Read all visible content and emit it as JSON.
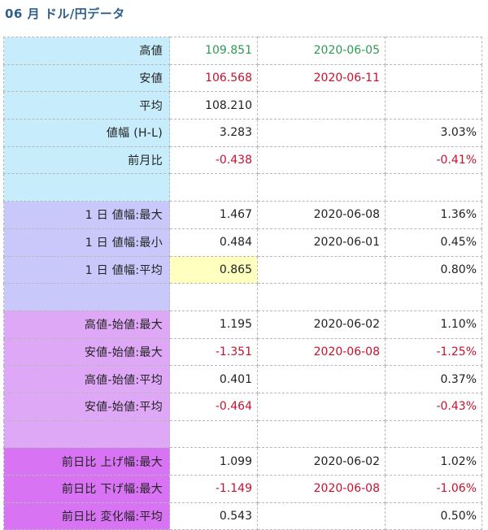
{
  "title": "06 月 ドル/円データ",
  "colors": {
    "label_blue": "#c7ecfb",
    "label_lavender": "#c8c8fb",
    "label_violet": "#dfa8f7",
    "label_magenta": "#d874f4",
    "positive": "#2e9a52",
    "negative": "#c8102e",
    "highlight": "#ffffc0"
  },
  "rows": [
    {
      "label": "高値",
      "value": "109.851",
      "date": "2020-06-05",
      "pct": "",
      "tone": "pos",
      "bg": "#c7ecfb"
    },
    {
      "label": "安値",
      "value": "106.568",
      "date": "2020-06-11",
      "pct": "",
      "tone": "neg",
      "bg": "#c7ecfb"
    },
    {
      "label": "平均",
      "value": "108.210",
      "date": "",
      "pct": "",
      "tone": "normal",
      "bg": "#c7ecfb"
    },
    {
      "label": "値幅 (H-L)",
      "value": "3.283",
      "date": "",
      "pct": "3.03%",
      "tone": "normal",
      "bg": "#c7ecfb"
    },
    {
      "label": "前月比",
      "value": "-0.438",
      "date": "",
      "pct": "-0.41%",
      "tone": "neg",
      "bg": "#c7ecfb"
    },
    {
      "label": "",
      "value": "",
      "date": "",
      "pct": "",
      "tone": "normal",
      "bg": "#c7ecfb"
    },
    {
      "label": "1 日 値幅:最大",
      "value": "1.467",
      "date": "2020-06-08",
      "pct": "1.36%",
      "tone": "normal",
      "bg": "#c8c8fb"
    },
    {
      "label": "1 日 値幅:最小",
      "value": "0.484",
      "date": "2020-06-01",
      "pct": "0.45%",
      "tone": "normal",
      "bg": "#c8c8fb"
    },
    {
      "label": "1 日 値幅:平均",
      "value": "0.865",
      "date": "",
      "pct": "0.80%",
      "tone": "normal",
      "bg": "#c8c8fb",
      "highlight": true
    },
    {
      "label": "",
      "value": "",
      "date": "",
      "pct": "",
      "tone": "normal",
      "bg": "#c8c8fb"
    },
    {
      "label": "高値-始値:最大",
      "value": "1.195",
      "date": "2020-06-02",
      "pct": "1.10%",
      "tone": "normal",
      "bg": "#dfa8f7"
    },
    {
      "label": "安値-始値:最大",
      "value": "-1.351",
      "date": "2020-06-08",
      "pct": "-1.25%",
      "tone": "neg",
      "bg": "#dfa8f7"
    },
    {
      "label": "高値-始値:平均",
      "value": "0.401",
      "date": "",
      "pct": "0.37%",
      "tone": "normal",
      "bg": "#dfa8f7"
    },
    {
      "label": "安値-始値:平均",
      "value": "-0.464",
      "date": "",
      "pct": "-0.43%",
      "tone": "neg",
      "bg": "#dfa8f7"
    },
    {
      "label": "",
      "value": "",
      "date": "",
      "pct": "",
      "tone": "normal",
      "bg": "#dfa8f7"
    },
    {
      "label": "前日比 上げ幅:最大",
      "value": "1.099",
      "date": "2020-06-02",
      "pct": "1.02%",
      "tone": "normal",
      "bg": "#d874f4"
    },
    {
      "label": "前日比 下げ幅:最大",
      "value": "-1.149",
      "date": "2020-06-08",
      "pct": "-1.06%",
      "tone": "neg",
      "bg": "#d874f4"
    },
    {
      "label": "前日比 変化幅:平均",
      "value": "0.543",
      "date": "",
      "pct": "0.50%",
      "tone": "normal",
      "bg": "#d874f4"
    }
  ]
}
